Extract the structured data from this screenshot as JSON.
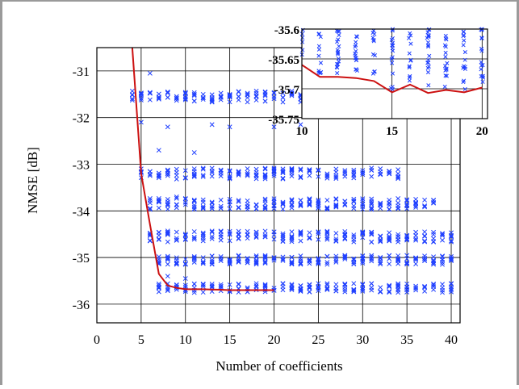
{
  "chart_data": [
    {
      "type": "scatter",
      "xlabel": "Number of coefficients",
      "ylabel": "NMSE [dB]",
      "xlim": [
        0,
        41
      ],
      "ylim": [
        -36.4,
        -30.5
      ],
      "xticks": [
        0,
        5,
        10,
        15,
        20,
        25,
        30,
        35,
        40
      ],
      "yticks": [
        -31,
        -32,
        -33,
        -34,
        -35,
        -36
      ],
      "grid": true,
      "marker_color": "#1f3fff",
      "line_color": "#cc1111",
      "scatter_levels": [
        {
          "y_center": -31.55,
          "x_range": [
            4,
            23
          ],
          "spread": 0.12
        },
        {
          "y_center": -33.2,
          "x_range": [
            5,
            34
          ],
          "spread": 0.12
        },
        {
          "y_center": -33.85,
          "x_range": [
            6,
            38
          ],
          "spread": 0.12
        },
        {
          "y_center": -34.55,
          "x_range": [
            6,
            40
          ],
          "spread": 0.12
        },
        {
          "y_center": -35.05,
          "x_range": [
            7,
            40
          ],
          "spread": 0.1
        },
        {
          "y_center": -35.65,
          "x_range": [
            7,
            40
          ],
          "spread": 0.1
        }
      ],
      "scatter_points_extra": [
        {
          "x": 5,
          "y": -32.1
        },
        {
          "x": 6,
          "y": -31.05
        },
        {
          "x": 7,
          "y": -32.7
        },
        {
          "x": 8,
          "y": -32.2
        },
        {
          "x": 9,
          "y": -33.7
        },
        {
          "x": 11,
          "y": -32.75
        },
        {
          "x": 13,
          "y": -32.15
        },
        {
          "x": 15,
          "y": -32.2
        },
        {
          "x": 20,
          "y": -32.2
        },
        {
          "x": 23,
          "y": -32.15
        },
        {
          "x": 8,
          "y": -35.4
        },
        {
          "x": 10,
          "y": -35.45
        }
      ],
      "min_curve": {
        "x": [
          4,
          5,
          6,
          7,
          8,
          9,
          10,
          11,
          12,
          13,
          14,
          15,
          16,
          17,
          18,
          19,
          20
        ],
        "y": [
          -30.5,
          -33.2,
          -34.3,
          -35.35,
          -35.6,
          -35.65,
          -35.68,
          -35.68,
          -35.68,
          -35.685,
          -35.69,
          -35.7,
          -35.7,
          -35.7,
          -35.7,
          -35.7,
          -35.7
        ]
      }
    },
    {
      "type": "scatter",
      "role": "inset",
      "xlim": [
        10,
        20.3
      ],
      "ylim": [
        -35.75,
        -35.6
      ],
      "xticks": [
        10,
        15,
        20
      ],
      "yticks": [
        -35.6,
        -35.65,
        -35.7,
        -35.75
      ],
      "grid": true,
      "min_curve": {
        "x": [
          10,
          11,
          12,
          13,
          14,
          15,
          16,
          17,
          18,
          19,
          20
        ],
        "y": [
          -35.66,
          -35.68,
          -35.68,
          -35.682,
          -35.687,
          -35.706,
          -35.693,
          -35.707,
          -35.702,
          -35.706,
          -35.698
        ]
      },
      "scatter_x": [
        10,
        11,
        12,
        13,
        14,
        15,
        16,
        17,
        18,
        19,
        20
      ]
    }
  ]
}
